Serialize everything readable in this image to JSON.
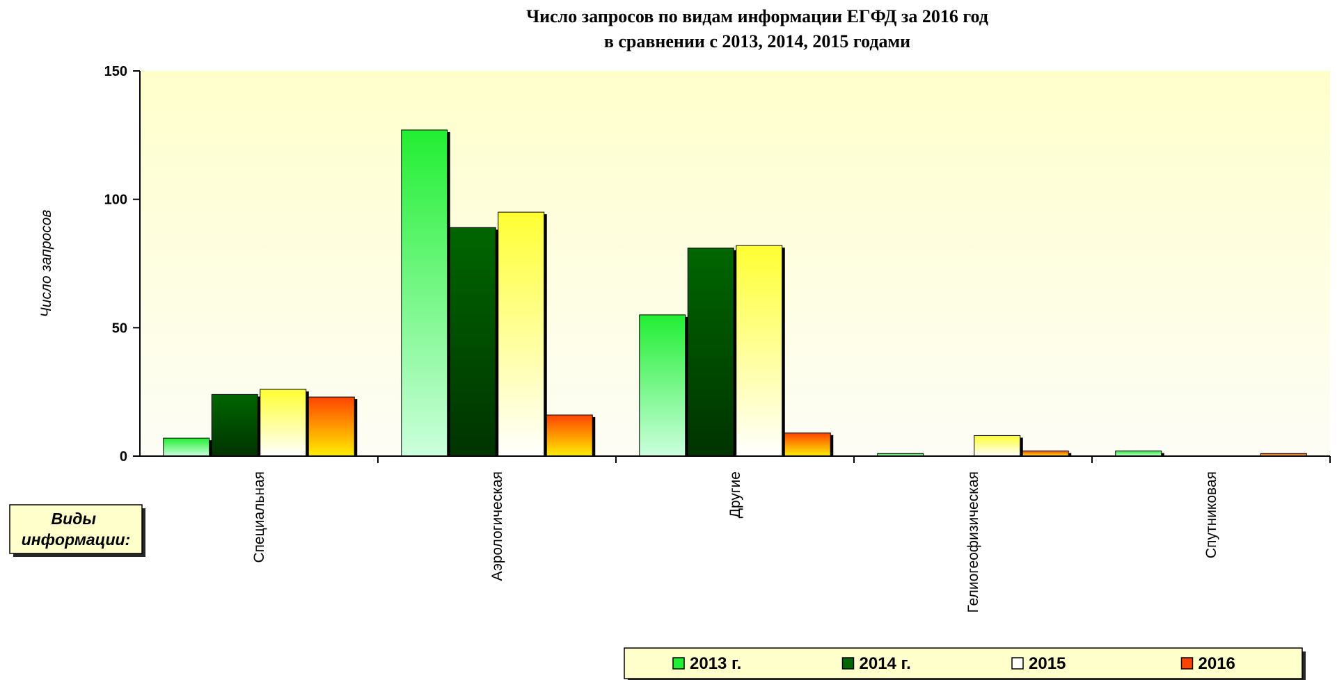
{
  "chart_data": {
    "type": "bar",
    "title": [
      "Число запросов по видам информации ЕГФД за 2016 год",
      "в сравнении с 2013, 2014,  2015 годами"
    ],
    "ylabel": "Число запросов",
    "xlabel": "Виды информации:",
    "ylim": [
      0,
      150
    ],
    "yticks": [
      0,
      50,
      100,
      150
    ],
    "grid": false,
    "legend_position": "bottom-right",
    "categories": [
      "Специальная",
      "Аэрологическая",
      "Другие",
      "Гелиогеофизическая",
      "Спутниковая"
    ],
    "series": [
      {
        "name": "2013 г.",
        "values": [
          7,
          127,
          55,
          1,
          2
        ],
        "color": "#22ee33",
        "color_light": "#ccffdd"
      },
      {
        "name": "2014 г.",
        "values": [
          24,
          89,
          81,
          0,
          0
        ],
        "color": "#006600",
        "color_light": "#003300"
      },
      {
        "name": "2015",
        "values": [
          26,
          95,
          82,
          8,
          0
        ],
        "color": "#ffff33",
        "color_light": "#ffffff"
      },
      {
        "name": "2016",
        "values": [
          23,
          16,
          9,
          2,
          1
        ],
        "color": "#ff4400",
        "color_light": "#ffee00"
      }
    ]
  }
}
